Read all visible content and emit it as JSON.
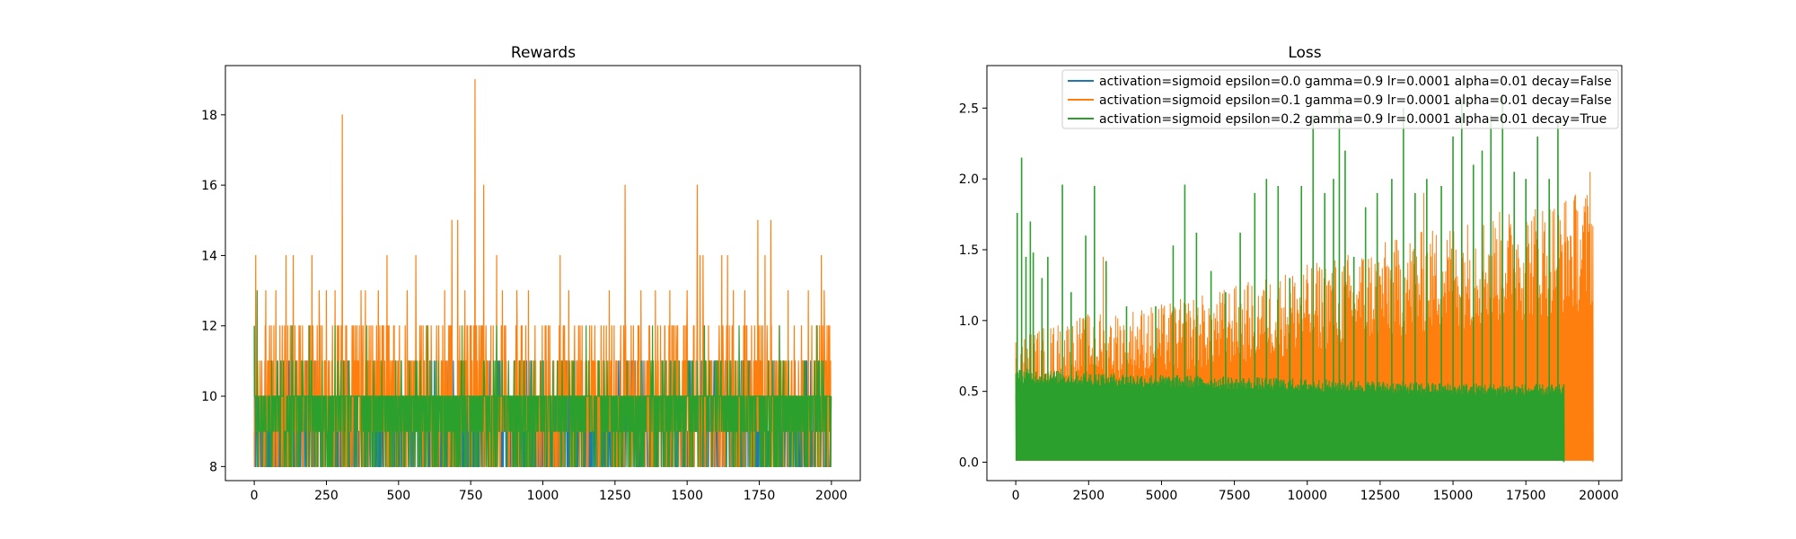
{
  "chart_data": [
    {
      "type": "line",
      "title": "Rewards",
      "xlabel": "",
      "ylabel": "",
      "xlim": [
        -100,
        2100
      ],
      "ylim": [
        7.6,
        19.4
      ],
      "x_ticks": [
        0,
        250,
        500,
        750,
        1000,
        1250,
        1500,
        1750,
        2000
      ],
      "y_ticks": [
        8,
        10,
        12,
        14,
        16,
        18
      ],
      "legend": "none",
      "grid": false,
      "n_points": 2000,
      "series": [
        {
          "color": "#1f77b4",
          "base_values": [
            8,
            9,
            10,
            11
          ],
          "peaks": [
            {
              "x": 0,
              "y": 12
            },
            {
              "x": 120,
              "y": 11
            },
            {
              "x": 350,
              "y": 11
            },
            {
              "x": 600,
              "y": 11
            },
            {
              "x": 1000,
              "y": 11
            },
            {
              "x": 1550,
              "y": 11
            },
            {
              "x": 1900,
              "y": 11
            }
          ]
        },
        {
          "color": "#ff7f0e",
          "base_values": [
            8,
            9,
            10,
            11,
            12
          ],
          "peaks": [
            {
              "x": 5,
              "y": 14
            },
            {
              "x": 40,
              "y": 13
            },
            {
              "x": 75,
              "y": 13
            },
            {
              "x": 110,
              "y": 14
            },
            {
              "x": 135,
              "y": 14
            },
            {
              "x": 200,
              "y": 14
            },
            {
              "x": 225,
              "y": 13
            },
            {
              "x": 250,
              "y": 13
            },
            {
              "x": 280,
              "y": 13
            },
            {
              "x": 305,
              "y": 18
            },
            {
              "x": 370,
              "y": 13
            },
            {
              "x": 385,
              "y": 13
            },
            {
              "x": 430,
              "y": 13
            },
            {
              "x": 460,
              "y": 14
            },
            {
              "x": 530,
              "y": 13
            },
            {
              "x": 560,
              "y": 14
            },
            {
              "x": 660,
              "y": 13
            },
            {
              "x": 685,
              "y": 15
            },
            {
              "x": 705,
              "y": 15
            },
            {
              "x": 730,
              "y": 13
            },
            {
              "x": 765,
              "y": 19
            },
            {
              "x": 795,
              "y": 16
            },
            {
              "x": 840,
              "y": 14
            },
            {
              "x": 860,
              "y": 13
            },
            {
              "x": 910,
              "y": 13
            },
            {
              "x": 950,
              "y": 13
            },
            {
              "x": 1060,
              "y": 14
            },
            {
              "x": 1090,
              "y": 13
            },
            {
              "x": 1230,
              "y": 13
            },
            {
              "x": 1285,
              "y": 16
            },
            {
              "x": 1340,
              "y": 13
            },
            {
              "x": 1390,
              "y": 13
            },
            {
              "x": 1440,
              "y": 13
            },
            {
              "x": 1500,
              "y": 13
            },
            {
              "x": 1535,
              "y": 16
            },
            {
              "x": 1545,
              "y": 14
            },
            {
              "x": 1555,
              "y": 14
            },
            {
              "x": 1620,
              "y": 14
            },
            {
              "x": 1640,
              "y": 14
            },
            {
              "x": 1660,
              "y": 13
            },
            {
              "x": 1700,
              "y": 13
            },
            {
              "x": 1745,
              "y": 15
            },
            {
              "x": 1770,
              "y": 14
            },
            {
              "x": 1790,
              "y": 15
            },
            {
              "x": 1850,
              "y": 13
            },
            {
              "x": 1920,
              "y": 13
            },
            {
              "x": 1965,
              "y": 14
            },
            {
              "x": 1975,
              "y": 13
            },
            {
              "x": 1990,
              "y": 12
            }
          ]
        },
        {
          "color": "#2ca02c",
          "base_values": [
            8,
            9,
            10,
            11
          ],
          "peaks": [
            {
              "x": 0,
              "y": 12
            },
            {
              "x": 10,
              "y": 13
            },
            {
              "x": 130,
              "y": 12
            },
            {
              "x": 190,
              "y": 12
            },
            {
              "x": 280,
              "y": 12
            },
            {
              "x": 390,
              "y": 12
            },
            {
              "x": 600,
              "y": 12
            },
            {
              "x": 720,
              "y": 12
            },
            {
              "x": 840,
              "y": 12
            },
            {
              "x": 1150,
              "y": 12
            },
            {
              "x": 1380,
              "y": 12
            },
            {
              "x": 1560,
              "y": 12
            },
            {
              "x": 1680,
              "y": 12
            },
            {
              "x": 1820,
              "y": 12
            },
            {
              "x": 1950,
              "y": 12
            }
          ]
        }
      ]
    },
    {
      "type": "line",
      "title": "Loss",
      "xlabel": "",
      "ylabel": "",
      "xlim": [
        -990,
        20790
      ],
      "ylim": [
        -0.13,
        2.8
      ],
      "x_ticks": [
        0,
        2500,
        5000,
        7500,
        10000,
        12500,
        15000,
        17500,
        20000
      ],
      "y_ticks": [
        0.0,
        0.5,
        1.0,
        1.5,
        2.0,
        2.5
      ],
      "grid": false,
      "legend": "top-right",
      "series": [
        {
          "name": "activation=sigmoid epsilon=0.0 gamma=0.9 lr=0.0001 alpha=0.01 decay=False",
          "color": "#1f77b4",
          "x_max": 6000,
          "envelope": [
            [
              0,
              0.5
            ],
            [
              6000,
              0.45
            ]
          ]
        },
        {
          "name": "activation=sigmoid epsilon=0.1 gamma=0.9 lr=0.0001 alpha=0.01 decay=False",
          "color": "#ff7f0e",
          "x_max": 19800,
          "envelope": [
            [
              0,
              0.9
            ],
            [
              2500,
              1.05
            ],
            [
              5000,
              1.12
            ],
            [
              7500,
              1.25
            ],
            [
              10000,
              1.4
            ],
            [
              12500,
              1.55
            ],
            [
              15000,
              1.7
            ],
            [
              17500,
              1.82
            ],
            [
              19800,
              1.95
            ]
          ],
          "peaks": [
            {
              "x": 3000,
              "y": 1.45
            },
            {
              "x": 12400,
              "y": 1.75
            },
            {
              "x": 14000,
              "y": 1.9
            },
            {
              "x": 16000,
              "y": 2.2
            },
            {
              "x": 18600,
              "y": 2.15
            },
            {
              "x": 19700,
              "y": 2.05
            }
          ]
        },
        {
          "name": "activation=sigmoid epsilon=0.2 gamma=0.9 lr=0.0001 alpha=0.01 decay=True",
          "color": "#2ca02c",
          "x_max": 18800,
          "band": [
            [
              0,
              0.66
            ],
            [
              5000,
              0.62
            ],
            [
              10000,
              0.59
            ],
            [
              15000,
              0.56
            ],
            [
              18800,
              0.55
            ]
          ],
          "peaks": [
            {
              "x": 50,
              "y": 1.76
            },
            {
              "x": 200,
              "y": 2.15
            },
            {
              "x": 350,
              "y": 1.45
            },
            {
              "x": 500,
              "y": 1.7
            },
            {
              "x": 600,
              "y": 1.48
            },
            {
              "x": 900,
              "y": 1.3
            },
            {
              "x": 1100,
              "y": 1.45
            },
            {
              "x": 1600,
              "y": 1.96
            },
            {
              "x": 1900,
              "y": 1.2
            },
            {
              "x": 2400,
              "y": 1.6
            },
            {
              "x": 2700,
              "y": 1.95
            },
            {
              "x": 3100,
              "y": 1.42
            },
            {
              "x": 3800,
              "y": 1.1
            },
            {
              "x": 4800,
              "y": 1.1
            },
            {
              "x": 5400,
              "y": 1.53
            },
            {
              "x": 5800,
              "y": 1.96
            },
            {
              "x": 6200,
              "y": 1.62
            },
            {
              "x": 6700,
              "y": 1.35
            },
            {
              "x": 7200,
              "y": 1.2
            },
            {
              "x": 7700,
              "y": 1.62
            },
            {
              "x": 8200,
              "y": 1.9
            },
            {
              "x": 8600,
              "y": 2.0
            },
            {
              "x": 9000,
              "y": 1.95
            },
            {
              "x": 9400,
              "y": 1.3
            },
            {
              "x": 9800,
              "y": 1.95
            },
            {
              "x": 10200,
              "y": 2.45
            },
            {
              "x": 10600,
              "y": 1.9
            },
            {
              "x": 10900,
              "y": 2.0
            },
            {
              "x": 11100,
              "y": 2.5
            },
            {
              "x": 11300,
              "y": 2.2
            },
            {
              "x": 11600,
              "y": 1.45
            },
            {
              "x": 12000,
              "y": 1.8
            },
            {
              "x": 12400,
              "y": 1.9
            },
            {
              "x": 12900,
              "y": 2.0
            },
            {
              "x": 13300,
              "y": 2.5
            },
            {
              "x": 13700,
              "y": 1.9
            },
            {
              "x": 14100,
              "y": 2.0
            },
            {
              "x": 14600,
              "y": 1.95
            },
            {
              "x": 15000,
              "y": 2.3
            },
            {
              "x": 15300,
              "y": 2.55
            },
            {
              "x": 15700,
              "y": 2.1
            },
            {
              "x": 16000,
              "y": 2.2
            },
            {
              "x": 16300,
              "y": 2.45
            },
            {
              "x": 16700,
              "y": 2.6
            },
            {
              "x": 17100,
              "y": 2.05
            },
            {
              "x": 17500,
              "y": 2.0
            },
            {
              "x": 17900,
              "y": 2.3
            },
            {
              "x": 18300,
              "y": 2.0
            },
            {
              "x": 18600,
              "y": 2.4
            }
          ]
        }
      ]
    }
  ]
}
